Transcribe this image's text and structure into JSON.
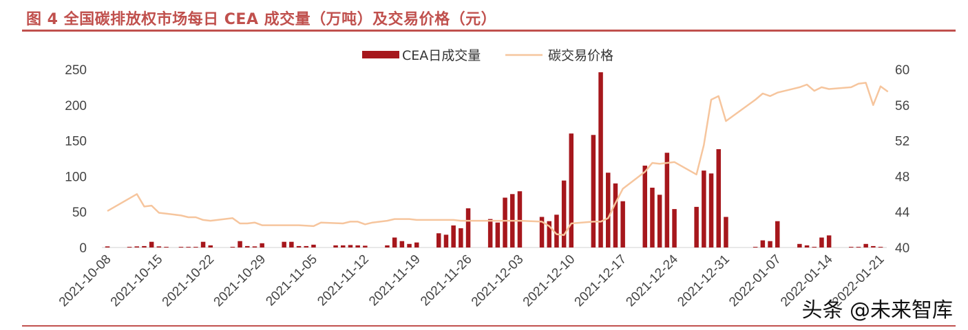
{
  "title": "图 4 全国碳排放权市场每日 CEA 成交量（万吨）及交易价格（元）",
  "watermark": "头条 @未来智库",
  "colors": {
    "bar": "#a6171c",
    "line": "#f6c59d",
    "title": "#c0504d",
    "axis": "#d0d0d0"
  },
  "chart_data": {
    "type": "bar+line",
    "legend_position": "top-center",
    "grid": false,
    "x_tick_labels": [
      "2021-10-08",
      "2021-10-15",
      "2021-10-22",
      "2021-10-29",
      "2021-11-05",
      "2021-11-12",
      "2021-11-19",
      "2021-11-26",
      "2021-12-03",
      "2021-12-10",
      "2021-12-17",
      "2021-12-24",
      "2021-12-31",
      "2022-01-07",
      "2022-01-14",
      "2022-01-21"
    ],
    "x_range": [
      "2021-10-08",
      "2022-01-21"
    ],
    "y_left": {
      "ticks": [
        "0",
        "50",
        "100",
        "150",
        "200",
        "250"
      ],
      "range": [
        0,
        250
      ]
    },
    "y_right": {
      "ticks": [
        "40",
        "44",
        "48",
        "52",
        "56",
        "60"
      ],
      "range": [
        40,
        60
      ]
    },
    "series": [
      {
        "name": "CEA日成交量",
        "type": "bar",
        "axis": "left",
        "points": [
          [
            "2021-10-08",
            1.5
          ],
          [
            "2021-10-11",
            1
          ],
          [
            "2021-10-12",
            1.5
          ],
          [
            "2021-10-13",
            2
          ],
          [
            "2021-10-14",
            8
          ],
          [
            "2021-10-15",
            1.5
          ],
          [
            "2021-10-16",
            1
          ],
          [
            "2021-10-18",
            1
          ],
          [
            "2021-10-19",
            1
          ],
          [
            "2021-10-20",
            1
          ],
          [
            "2021-10-21",
            8
          ],
          [
            "2021-10-22",
            3
          ],
          [
            "2021-10-25",
            1
          ],
          [
            "2021-10-26",
            9
          ],
          [
            "2021-10-27",
            2
          ],
          [
            "2021-10-28",
            1.5
          ],
          [
            "2021-10-29",
            6
          ],
          [
            "2021-11-01",
            8
          ],
          [
            "2021-11-02",
            8
          ],
          [
            "2021-11-03",
            2
          ],
          [
            "2021-11-04",
            2
          ],
          [
            "2021-11-05",
            4
          ],
          [
            "2021-11-08",
            3
          ],
          [
            "2021-11-09",
            3
          ],
          [
            "2021-11-10",
            3.5
          ],
          [
            "2021-11-11",
            3
          ],
          [
            "2021-11-12",
            2.5
          ],
          [
            "2021-11-15",
            3
          ],
          [
            "2021-11-16",
            14
          ],
          [
            "2021-11-17",
            9
          ],
          [
            "2021-11-18",
            5
          ],
          [
            "2021-11-19",
            7
          ],
          [
            "2021-11-22",
            20
          ],
          [
            "2021-11-23",
            18
          ],
          [
            "2021-11-24",
            31
          ],
          [
            "2021-11-25",
            27
          ],
          [
            "2021-11-26",
            55
          ],
          [
            "2021-11-29",
            40
          ],
          [
            "2021-11-30",
            35
          ],
          [
            "2021-12-01",
            70
          ],
          [
            "2021-12-02",
            75
          ],
          [
            "2021-12-03",
            79
          ],
          [
            "2021-12-06",
            43
          ],
          [
            "2021-12-07",
            37
          ],
          [
            "2021-12-08",
            46
          ],
          [
            "2021-12-09",
            94
          ],
          [
            "2021-12-10",
            160
          ],
          [
            "2021-12-13",
            158
          ],
          [
            "2021-12-14",
            246
          ],
          [
            "2021-12-15",
            105
          ],
          [
            "2021-12-16",
            90
          ],
          [
            "2021-12-17",
            65
          ],
          [
            "2021-12-20",
            115
          ],
          [
            "2021-12-21",
            84
          ],
          [
            "2021-12-22",
            74
          ],
          [
            "2021-12-23",
            133
          ],
          [
            "2021-12-24",
            54
          ],
          [
            "2021-12-27",
            57
          ],
          [
            "2021-12-28",
            108
          ],
          [
            "2021-12-29",
            104
          ],
          [
            "2021-12-30",
            138
          ],
          [
            "2021-12-31",
            43
          ],
          [
            "2022-01-04",
            1
          ],
          [
            "2022-01-05",
            10
          ],
          [
            "2022-01-06",
            9
          ],
          [
            "2022-01-07",
            37
          ],
          [
            "2022-01-10",
            5
          ],
          [
            "2022-01-11",
            3
          ],
          [
            "2022-01-12",
            1
          ],
          [
            "2022-01-13",
            14
          ],
          [
            "2022-01-14",
            17
          ],
          [
            "2022-01-17",
            1
          ],
          [
            "2022-01-18",
            1
          ],
          [
            "2022-01-19",
            5
          ],
          [
            "2022-01-20",
            2
          ],
          [
            "2022-01-21",
            1
          ]
        ]
      },
      {
        "name": "碳交易价格",
        "type": "line",
        "axis": "right",
        "points": [
          [
            "2021-10-08",
            44.1
          ],
          [
            "2021-10-12",
            46.0
          ],
          [
            "2021-10-13",
            44.6
          ],
          [
            "2021-10-14",
            44.7
          ],
          [
            "2021-10-15",
            43.9
          ],
          [
            "2021-10-16",
            43.8
          ],
          [
            "2021-10-18",
            43.6
          ],
          [
            "2021-10-19",
            43.4
          ],
          [
            "2021-10-20",
            43.4
          ],
          [
            "2021-10-21",
            43.1
          ],
          [
            "2021-10-22",
            43.0
          ],
          [
            "2021-10-25",
            43.3
          ],
          [
            "2021-10-26",
            42.7
          ],
          [
            "2021-10-27",
            42.7
          ],
          [
            "2021-10-28",
            42.8
          ],
          [
            "2021-10-29",
            42.5
          ],
          [
            "2021-11-01",
            42.5
          ],
          [
            "2021-11-03",
            42.5
          ],
          [
            "2021-11-05",
            42.4
          ],
          [
            "2021-11-06",
            42.8
          ],
          [
            "2021-11-09",
            42.7
          ],
          [
            "2021-11-10",
            42.9
          ],
          [
            "2021-11-11",
            42.9
          ],
          [
            "2021-11-12",
            42.6
          ],
          [
            "2021-11-13",
            42.8
          ],
          [
            "2021-11-15",
            43.0
          ],
          [
            "2021-11-16",
            43.2
          ],
          [
            "2021-11-17",
            43.2
          ],
          [
            "2021-11-18",
            43.2
          ],
          [
            "2021-11-19",
            43.1
          ],
          [
            "2021-11-22",
            43.1
          ],
          [
            "2021-11-24",
            43.1
          ],
          [
            "2021-11-25",
            43.0
          ],
          [
            "2021-11-26",
            43.0
          ],
          [
            "2021-11-29",
            43.0
          ],
          [
            "2021-12-03",
            43.0
          ],
          [
            "2021-12-06",
            42.9
          ],
          [
            "2021-12-07",
            42.4
          ],
          [
            "2021-12-08",
            41.5
          ],
          [
            "2021-12-09",
            41.4
          ],
          [
            "2021-12-10",
            42.7
          ],
          [
            "2021-12-13",
            42.9
          ],
          [
            "2021-12-14",
            42.9
          ],
          [
            "2021-12-15",
            43.3
          ],
          [
            "2021-12-16",
            45.0
          ],
          [
            "2021-12-17",
            46.6
          ],
          [
            "2021-12-20",
            48.5
          ],
          [
            "2021-12-21",
            49.5
          ],
          [
            "2021-12-22",
            49.4
          ],
          [
            "2021-12-23",
            49.5
          ],
          [
            "2021-12-24",
            49.6
          ],
          [
            "2021-12-27",
            48.2
          ],
          [
            "2021-12-28",
            51.5
          ],
          [
            "2021-12-29",
            56.6
          ],
          [
            "2021-12-30",
            57.0
          ],
          [
            "2021-12-31",
            54.2
          ],
          [
            "2022-01-04",
            56.6
          ],
          [
            "2022-01-05",
            57.3
          ],
          [
            "2022-01-06",
            57.0
          ],
          [
            "2022-01-07",
            57.4
          ],
          [
            "2022-01-10",
            58.0
          ],
          [
            "2022-01-11",
            58.3
          ],
          [
            "2022-01-12",
            57.6
          ],
          [
            "2022-01-13",
            58.0
          ],
          [
            "2022-01-14",
            57.8
          ],
          [
            "2022-01-17",
            58.0
          ],
          [
            "2022-01-18",
            58.4
          ],
          [
            "2022-01-19",
            58.5
          ],
          [
            "2022-01-20",
            56.0
          ],
          [
            "2022-01-21",
            58.1
          ],
          [
            "2022-01-22",
            57.5
          ]
        ]
      }
    ]
  }
}
